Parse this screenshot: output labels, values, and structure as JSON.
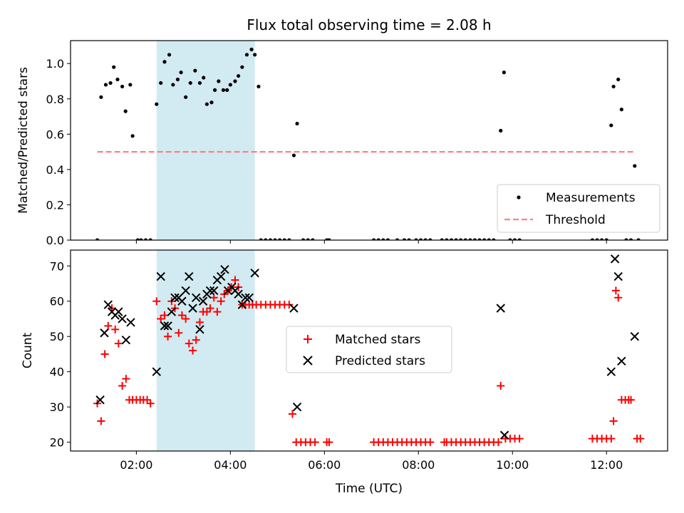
{
  "chart_data": [
    {
      "type": "scatter",
      "title": "Flux total observing time = 2.08 h",
      "xlabel": "",
      "ylabel": "Matched/Predicted stars",
      "ylim": [
        0.0,
        1.13
      ],
      "xlim_hours": [
        0.6,
        13.3
      ],
      "yticks": [
        "0.0",
        "0.2",
        "0.4",
        "0.6",
        "0.8",
        "1.0"
      ],
      "shaded_interval_hours": [
        2.43,
        4.52
      ],
      "shade_color": "#add8e6",
      "legend": [
        "Measurements",
        "Threshold"
      ],
      "legend_position": "lower-right",
      "threshold": {
        "name": "Threshold",
        "value": 0.5,
        "x_range_hours": [
          1.17,
          12.6
        ],
        "color": "#ff8080"
      },
      "series": [
        {
          "name": "Measurements",
          "color": "#000000",
          "x": [
            1.17,
            1.25,
            1.35,
            1.45,
            1.52,
            1.6,
            1.7,
            1.77,
            1.87,
            1.92,
            2.03,
            2.1,
            2.2,
            2.3,
            2.43,
            2.52,
            2.6,
            2.7,
            2.78,
            2.88,
            2.95,
            3.05,
            3.15,
            3.25,
            3.35,
            3.43,
            3.5,
            3.6,
            3.67,
            3.75,
            3.85,
            3.93,
            4.0,
            4.1,
            4.17,
            4.25,
            4.35,
            4.45,
            4.52,
            4.6,
            4.65,
            4.75,
            4.85,
            4.95,
            5.05,
            5.15,
            5.25,
            5.35,
            5.42,
            5.55,
            5.65,
            5.75,
            6.05,
            6.1,
            7.05,
            7.15,
            7.25,
            7.35,
            7.55,
            7.7,
            7.8,
            7.95,
            8.05,
            8.15,
            8.25,
            8.5,
            8.6,
            8.7,
            8.8,
            8.9,
            9.0,
            9.1,
            9.2,
            9.3,
            9.4,
            9.5,
            9.6,
            9.75,
            9.82,
            9.95,
            10.05,
            10.15,
            11.7,
            11.8,
            11.9,
            12.0,
            12.1,
            12.15,
            12.25,
            12.32,
            12.42,
            12.52,
            12.6,
            12.68
          ],
          "y": [
            0.0,
            0.81,
            0.88,
            0.89,
            0.98,
            0.91,
            0.87,
            0.73,
            0.88,
            0.59,
            0.0,
            0.0,
            0.0,
            0.0,
            0.77,
            0.89,
            1.01,
            1.05,
            0.88,
            0.91,
            0.95,
            0.81,
            0.89,
            0.96,
            0.89,
            0.92,
            0.77,
            0.78,
            0.85,
            0.9,
            0.85,
            0.85,
            0.88,
            0.9,
            0.93,
            0.98,
            1.05,
            1.08,
            1.05,
            0.87,
            0.0,
            0.0,
            0.0,
            0.0,
            0.0,
            0.0,
            0.0,
            0.48,
            0.66,
            0.0,
            0.0,
            0.0,
            0.0,
            0.0,
            0.0,
            0.0,
            0.0,
            0.0,
            0.0,
            0.0,
            0.0,
            0.0,
            0.0,
            0.0,
            0.0,
            0.0,
            0.0,
            0.0,
            0.0,
            0.0,
            0.0,
            0.0,
            0.0,
            0.0,
            0.0,
            0.0,
            0.0,
            0.62,
            0.95,
            0.0,
            0.0,
            0.0,
            0.0,
            0.0,
            0.0,
            0.0,
            0.65,
            0.87,
            0.91,
            0.74,
            0.0,
            0.0,
            0.42,
            0.0
          ]
        }
      ]
    },
    {
      "type": "scatter",
      "title": "",
      "xlabel": "Time (UTC)",
      "ylabel": "Count",
      "ylim": [
        17.5,
        74.5
      ],
      "xlim_hours": [
        0.6,
        13.3
      ],
      "yticks": [
        "20",
        "30",
        "40",
        "50",
        "60",
        "70"
      ],
      "xticks": [
        "02:00",
        "04:00",
        "06:00",
        "08:00",
        "10:00",
        "12:00"
      ],
      "xtick_hours": [
        2,
        4,
        6,
        8,
        10,
        12
      ],
      "shaded_interval_hours": [
        2.43,
        4.52
      ],
      "legend": [
        "Matched stars",
        "Predicted stars"
      ],
      "legend_position": "center",
      "series": [
        {
          "name": "Matched stars",
          "marker": "+",
          "color": "#ff0000",
          "x": [
            1.17,
            1.25,
            1.33,
            1.4,
            1.48,
            1.55,
            1.62,
            1.7,
            1.78,
            1.85,
            1.92,
            2.0,
            2.08,
            2.15,
            2.23,
            2.3,
            2.43,
            2.52,
            2.6,
            2.67,
            2.75,
            2.82,
            2.9,
            2.97,
            3.05,
            3.12,
            3.2,
            3.27,
            3.35,
            3.42,
            3.5,
            3.57,
            3.65,
            3.72,
            3.8,
            3.87,
            3.95,
            4.02,
            4.1,
            4.17,
            4.25,
            4.32,
            4.4,
            4.47,
            4.55,
            4.65,
            4.75,
            4.85,
            4.95,
            5.05,
            5.15,
            5.25,
            5.32,
            5.4,
            5.5,
            5.6,
            5.7,
            5.8,
            6.05,
            6.1,
            7.05,
            7.15,
            7.25,
            7.35,
            7.45,
            7.55,
            7.65,
            7.75,
            7.85,
            7.95,
            8.05,
            8.15,
            8.25,
            8.55,
            8.6,
            8.7,
            8.8,
            8.9,
            9.0,
            9.1,
            9.2,
            9.3,
            9.4,
            9.5,
            9.6,
            9.7,
            9.75,
            9.85,
            9.95,
            10.05,
            10.15,
            11.7,
            11.8,
            11.9,
            12.0,
            12.1,
            12.15,
            12.2,
            12.25,
            12.32,
            12.4,
            12.47,
            12.52,
            12.65,
            12.72
          ],
          "y": [
            31,
            26,
            45,
            53,
            58,
            52,
            48,
            36,
            38,
            32,
            32,
            32,
            32,
            32,
            32,
            31,
            60,
            55,
            56,
            50,
            60,
            58,
            51,
            56,
            55,
            48,
            46,
            49,
            54,
            57,
            57,
            58,
            61,
            57,
            60,
            62,
            63,
            64,
            66,
            64,
            59,
            59,
            59,
            59,
            59,
            59,
            59,
            59,
            59,
            59,
            59,
            59,
            28,
            20,
            20,
            20,
            20,
            20,
            20,
            20,
            20,
            20,
            20,
            20,
            20,
            20,
            20,
            20,
            20,
            20,
            20,
            20,
            20,
            20,
            20,
            20,
            20,
            20,
            20,
            20,
            20,
            20,
            20,
            20,
            20,
            20,
            36,
            21,
            21,
            21,
            21,
            21,
            21,
            21,
            21,
            21,
            26,
            63,
            61,
            32,
            32,
            32,
            32,
            21,
            21
          ]
        },
        {
          "name": "Predicted stars",
          "marker": "x",
          "color": "#000000",
          "x": [
            1.23,
            1.32,
            1.4,
            1.48,
            1.55,
            1.62,
            1.7,
            1.78,
            1.88,
            2.43,
            2.52,
            2.6,
            2.67,
            2.75,
            2.82,
            2.9,
            2.97,
            3.05,
            3.12,
            3.2,
            3.27,
            3.35,
            3.42,
            3.5,
            3.57,
            3.65,
            3.72,
            3.8,
            3.88,
            3.95,
            4.03,
            4.1,
            4.17,
            4.25,
            4.32,
            4.4,
            4.52,
            5.35,
            5.42,
            9.75,
            9.83,
            12.1,
            12.18,
            12.25,
            12.32,
            12.6
          ],
          "y": [
            32,
            51,
            59,
            57,
            56,
            57,
            55,
            49,
            54,
            40,
            67,
            53,
            53,
            57,
            61,
            61,
            60,
            63,
            67,
            58,
            61,
            52,
            60,
            62,
            63,
            63,
            66,
            67,
            69,
            63,
            64,
            63,
            62,
            59,
            61,
            61,
            68,
            58,
            30,
            58,
            22,
            40,
            72,
            67,
            43,
            50
          ]
        }
      ]
    }
  ]
}
